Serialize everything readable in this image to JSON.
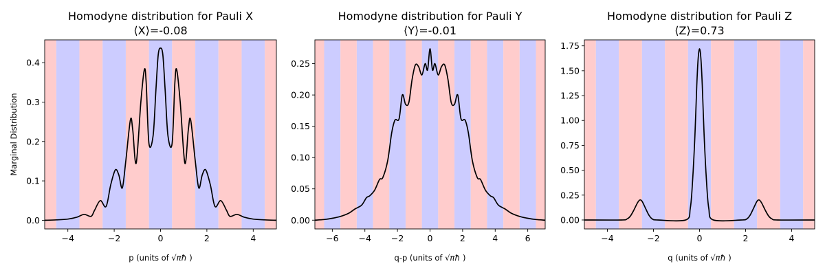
{
  "figure": {
    "background": "#ffffff",
    "band_colors": {
      "red": "#ffcccc",
      "blue": "#ccccff"
    },
    "curve_color": "#000000"
  },
  "chart_data": [
    {
      "type": "line",
      "title": "Homodyne distribution for Pauli X",
      "subtitle": "⟨X⟩=-0.08",
      "xlabel_prefix": "p (units of ",
      "xlabel_suffix": " )",
      "ylabel": "Marginal Distribution",
      "xlim": [
        -5.0,
        5.0
      ],
      "ylim": [
        -0.022,
        0.458
      ],
      "xticks": [
        -4,
        -2,
        0,
        2,
        4
      ],
      "yticks": [
        0.0,
        0.1,
        0.2,
        0.3,
        0.4
      ],
      "ytick_labels": [
        "0.0",
        "0.1",
        "0.2",
        "0.3",
        "0.4"
      ],
      "band_start": -5.5,
      "band_first": "red",
      "series": [
        {
          "x": [
            -5.0,
            -4.5,
            -4.0,
            -3.6,
            -3.3,
            -3.0,
            -2.85,
            -2.6,
            -2.35,
            -2.15,
            -1.95,
            -1.8,
            -1.65,
            -1.5,
            -1.3,
            -1.2,
            -1.05,
            -0.85,
            -0.7,
            -0.62,
            -0.5,
            -0.32,
            -0.2,
            -0.1,
            0.0,
            0.1,
            0.2,
            0.32,
            0.5,
            0.62,
            0.7,
            0.85,
            1.05,
            1.2,
            1.3,
            1.5,
            1.65,
            1.8,
            1.95,
            2.15,
            2.35,
            2.6,
            2.85,
            3.0,
            3.3,
            3.6,
            4.0,
            4.5,
            5.0
          ],
          "y": [
            0.0,
            0.001,
            0.003,
            0.008,
            0.015,
            0.01,
            0.025,
            0.05,
            0.035,
            0.09,
            0.128,
            0.115,
            0.082,
            0.15,
            0.255,
            0.23,
            0.145,
            0.3,
            0.382,
            0.35,
            0.195,
            0.215,
            0.33,
            0.42,
            0.437,
            0.42,
            0.33,
            0.215,
            0.195,
            0.35,
            0.382,
            0.3,
            0.145,
            0.23,
            0.255,
            0.15,
            0.082,
            0.115,
            0.128,
            0.09,
            0.035,
            0.05,
            0.025,
            0.01,
            0.015,
            0.008,
            0.003,
            0.001,
            0.0
          ]
        }
      ]
    },
    {
      "type": "line",
      "title": "Homodyne distribution for Pauli Y",
      "subtitle": "⟨Y⟩=-0.01",
      "xlabel_prefix": "q-p (units of ",
      "xlabel_suffix": " )",
      "ylabel": "",
      "xlim": [
        -7.07,
        7.07
      ],
      "ylim": [
        -0.014,
        0.288
      ],
      "xticks": [
        -6,
        -4,
        -2,
        0,
        2,
        4,
        6
      ],
      "yticks": [
        0.0,
        0.05,
        0.1,
        0.15,
        0.2,
        0.25
      ],
      "ytick_labels": [
        "0.00",
        "0.05",
        "0.10",
        "0.15",
        "0.20",
        "0.25"
      ],
      "band_start": -7.5,
      "band_first": "red",
      "series": [
        {
          "x": [
            -7.07,
            -6.5,
            -6.0,
            -5.5,
            -5.0,
            -4.6,
            -4.2,
            -3.9,
            -3.7,
            -3.4,
            -3.1,
            -2.9,
            -2.6,
            -2.35,
            -2.15,
            -1.9,
            -1.7,
            -1.5,
            -1.3,
            -1.1,
            -0.9,
            -0.7,
            -0.5,
            -0.3,
            -0.15,
            0.0,
            0.15,
            0.3,
            0.5,
            0.7,
            0.9,
            1.1,
            1.3,
            1.5,
            1.7,
            1.9,
            2.15,
            2.35,
            2.6,
            2.9,
            3.1,
            3.4,
            3.7,
            3.9,
            4.2,
            4.6,
            5.0,
            5.5,
            6.0,
            6.5,
            7.07
          ],
          "y": [
            0.0,
            0.001,
            0.003,
            0.006,
            0.011,
            0.018,
            0.024,
            0.036,
            0.039,
            0.048,
            0.065,
            0.068,
            0.095,
            0.14,
            0.16,
            0.162,
            0.2,
            0.185,
            0.188,
            0.225,
            0.248,
            0.245,
            0.232,
            0.25,
            0.24,
            0.274,
            0.24,
            0.25,
            0.232,
            0.245,
            0.248,
            0.225,
            0.188,
            0.185,
            0.2,
            0.162,
            0.16,
            0.14,
            0.095,
            0.068,
            0.065,
            0.048,
            0.039,
            0.036,
            0.024,
            0.018,
            0.011,
            0.006,
            0.003,
            0.001,
            0.0
          ]
        }
      ]
    },
    {
      "type": "line",
      "title": "Homodyne distribution for Pauli Z",
      "subtitle": "⟨Z⟩=0.73",
      "xlabel_prefix": "q (units of ",
      "xlabel_suffix": " )",
      "ylabel": "",
      "xlim": [
        -5.0,
        5.0
      ],
      "ylim": [
        -0.09,
        1.81
      ],
      "xticks": [
        -4,
        -2,
        0,
        2,
        4
      ],
      "yticks": [
        0.0,
        0.25,
        0.5,
        0.75,
        1.0,
        1.25,
        1.5,
        1.75
      ],
      "ytick_labels": [
        "0.00",
        "0.25",
        "0.50",
        "0.75",
        "1.00",
        "1.25",
        "1.50",
        "1.75"
      ],
      "band_start": -5.5,
      "band_first": "red",
      "series": [
        {
          "x": [
            -5.0,
            -3.4,
            -3.15,
            -3.0,
            -2.85,
            -2.7,
            -2.6,
            -2.5,
            -2.35,
            -2.2,
            -2.05,
            -1.8,
            -0.6,
            -0.4,
            -0.3,
            -0.2,
            -0.12,
            -0.06,
            0.0,
            0.06,
            0.12,
            0.2,
            0.3,
            0.4,
            0.6,
            1.8,
            2.05,
            2.2,
            2.35,
            2.5,
            2.6,
            2.7,
            2.85,
            3.0,
            3.15,
            3.4,
            5.0
          ],
          "y": [
            0.0,
            0.0,
            0.01,
            0.04,
            0.1,
            0.17,
            0.2,
            0.19,
            0.12,
            0.05,
            0.01,
            0.0,
            0.0,
            0.12,
            0.4,
            0.85,
            1.35,
            1.62,
            1.72,
            1.62,
            1.35,
            0.85,
            0.4,
            0.12,
            0.0,
            0.0,
            0.01,
            0.05,
            0.12,
            0.19,
            0.2,
            0.17,
            0.1,
            0.04,
            0.01,
            0.0,
            0.0
          ]
        }
      ]
    }
  ]
}
